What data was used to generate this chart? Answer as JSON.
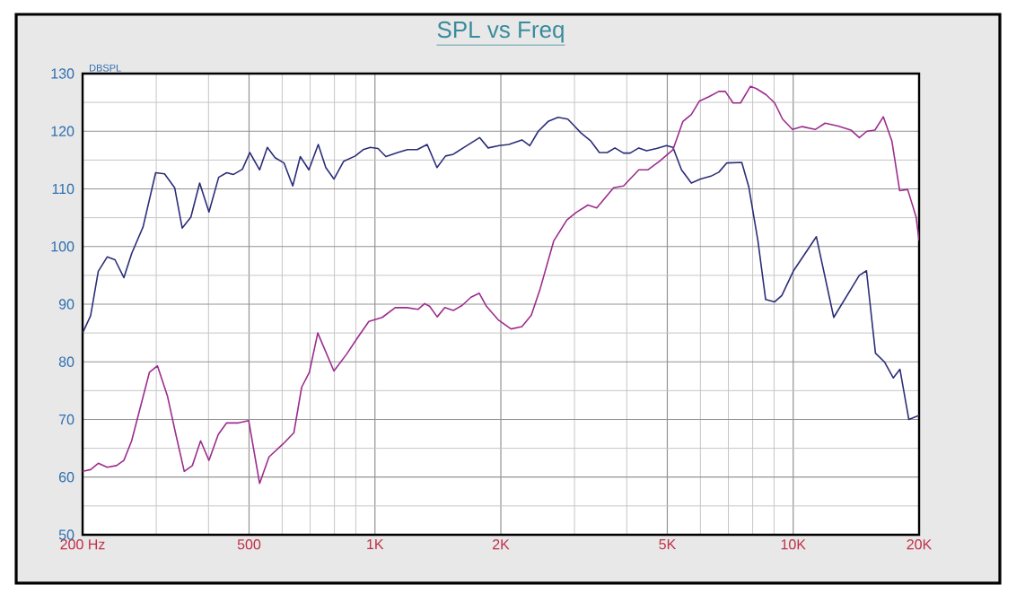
{
  "chart_data": {
    "type": "line",
    "title": "SPL  vs Freq",
    "ylabel": "DBSPL",
    "log": "x",
    "grid": true,
    "marker": "none",
    "line_style": "solid",
    "xlim": [
      200,
      20000
    ],
    "ylim": [
      50,
      130
    ],
    "xticks": [
      {
        "value": 200,
        "label": "200 Hz"
      },
      {
        "value": 300,
        "label": null
      },
      {
        "value": 400,
        "label": null
      },
      500,
      {
        "value": 600,
        "label": null
      },
      {
        "value": 700,
        "label": null
      },
      {
        "value": 800,
        "label": null
      },
      {
        "value": 900,
        "label": null
      },
      {
        "value": 1000,
        "label": "1K"
      },
      {
        "value": 2000,
        "label": "2K"
      },
      {
        "value": 3000,
        "label": null
      },
      {
        "value": 4000,
        "label": null
      },
      {
        "value": 5000,
        "label": "5K"
      },
      {
        "value": 6000,
        "label": null
      },
      {
        "value": 7000,
        "label": null
      },
      {
        "value": 8000,
        "label": null
      },
      {
        "value": 9000,
        "label": null
      },
      {
        "value": 10000,
        "label": "10K"
      },
      {
        "value": 20000,
        "label": "20K"
      }
    ],
    "yticks": [
      50,
      {
        "value": 55,
        "label": null
      },
      60,
      {
        "value": 65,
        "label": null
      },
      70,
      {
        "value": 75,
        "label": null
      },
      80,
      {
        "value": 85,
        "label": null
      },
      90,
      {
        "value": 95,
        "label": null
      },
      100,
      {
        "value": 105,
        "label": null
      },
      110,
      {
        "value": 115,
        "label": null
      },
      120,
      {
        "value": 125,
        "label": null
      },
      130
    ],
    "series": [
      {
        "color": "#2b2e78",
        "x": [
          200,
          209,
          218,
          229,
          239,
          251,
          262,
          279,
          299,
          314,
          332,
          346,
          363,
          381,
          401,
          423,
          442,
          459,
          482,
          502,
          530,
          553,
          577,
          606,
          636,
          663,
          695,
          732,
          763,
          798,
          842,
          897,
          937,
          975,
          1017,
          1062,
          1133,
          1196,
          1262,
          1333,
          1407,
          1475,
          1539,
          1625,
          1779,
          1865,
          1981,
          2090,
          2246,
          2345,
          2458,
          2595,
          2741,
          2891,
          3000,
          3108,
          3282,
          3440,
          3594,
          3749,
          3930,
          4074,
          4274,
          4461,
          4711,
          4977,
          5159,
          5406,
          5708,
          6003,
          6358,
          6641,
          6941,
          7535,
          7834,
          8235,
          8593,
          9030,
          9392,
          10020,
          11360,
          12500,
          14390,
          14970,
          15730,
          16520,
          17350,
          18000,
          18900,
          20000
        ],
        "values": [
          85,
          88,
          95.7,
          98.2,
          97.7,
          94.6,
          98.8,
          103.4,
          112.8,
          112.6,
          110.2,
          103.2,
          105.1,
          111,
          106,
          112,
          112.8,
          112.5,
          113.4,
          116.3,
          113.3,
          117.2,
          115.4,
          114.5,
          110.5,
          115.6,
          113.3,
          117.7,
          113.7,
          111.7,
          114.8,
          115.7,
          116.8,
          117.2,
          117,
          115.6,
          116.3,
          116.8,
          116.8,
          117.7,
          113.7,
          115.7,
          116,
          117.1,
          118.9,
          117.1,
          117.5,
          117.7,
          118.5,
          117.5,
          120,
          121.7,
          122.4,
          122.1,
          120.9,
          119.7,
          118.3,
          116.3,
          116.3,
          117.1,
          116.2,
          116.2,
          117.1,
          116.6,
          117,
          117.5,
          117.2,
          113.3,
          111,
          111.7,
          112.2,
          112.9,
          114.5,
          114.6,
          110.3,
          101,
          90.8,
          90.4,
          91.5,
          95.8,
          101.7,
          87.7,
          95,
          95.8,
          81.5,
          80,
          77.2,
          78.7,
          70,
          70.7
        ]
      },
      {
        "color": "#9c2d8e",
        "x": [
          200,
          209,
          218,
          229,
          241,
          251,
          262,
          289,
          302,
          319,
          333,
          350,
          366,
          383,
          401,
          422,
          442,
          472,
          499,
          530,
          558,
          604,
          640,
          668,
          697,
          730,
          798,
          855,
          909,
          967,
          1041,
          1118,
          1192,
          1267,
          1315,
          1352,
          1409,
          1469,
          1540,
          1617,
          1697,
          1776,
          1849,
          1970,
          2116,
          2246,
          2365,
          2484,
          2677,
          2877,
          3026,
          3230,
          3390,
          3720,
          3930,
          4274,
          4490,
          4793,
          5159,
          5449,
          5708,
          5962,
          6290,
          6641,
          6881,
          7185,
          7484,
          7905,
          8165,
          8623,
          9031,
          9433,
          9961,
          10510,
          11290,
          11920,
          12810,
          13740,
          14390,
          15010,
          15680,
          16430,
          17220,
          17970,
          18780,
          19680,
          20000
        ],
        "values": [
          61,
          61.3,
          62.4,
          61.7,
          62,
          62.9,
          66.3,
          78.2,
          79.3,
          74.1,
          67.9,
          61,
          62,
          66.3,
          62.9,
          67.4,
          69.4,
          69.4,
          69.8,
          58.9,
          63.5,
          65.8,
          67.7,
          75.6,
          78.2,
          85,
          78.4,
          81.3,
          84.2,
          87,
          87.7,
          89.4,
          89.4,
          89.1,
          90.1,
          89.6,
          87.8,
          89.4,
          88.9,
          89.8,
          91.2,
          91.9,
          89.6,
          87.3,
          85.7,
          86.1,
          88.1,
          92.7,
          101,
          104.6,
          105.9,
          107.2,
          106.7,
          110.2,
          110.5,
          113.3,
          113.3,
          114.8,
          116.8,
          121.7,
          122.9,
          125.2,
          126,
          126.9,
          126.9,
          124.9,
          124.9,
          127.8,
          127.4,
          126.3,
          124.9,
          122.1,
          120.3,
          120.8,
          120.3,
          121.4,
          120.9,
          120.2,
          118.9,
          120,
          120.2,
          122.5,
          118.3,
          109.7,
          109.9,
          105.1,
          101
        ]
      }
    ]
  }
}
